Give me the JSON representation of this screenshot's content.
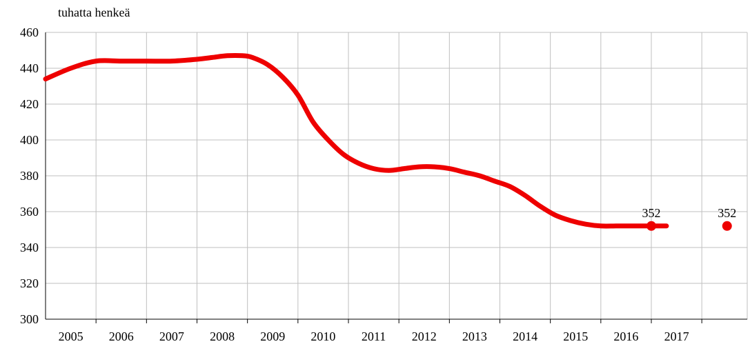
{
  "chart_data": {
    "type": "line",
    "title": "",
    "unit_label": "tuhatta henkeä",
    "xlabel": "",
    "ylabel": "",
    "ylim": [
      300,
      460
    ],
    "yticks": [
      300,
      320,
      340,
      360,
      380,
      400,
      420,
      440,
      460
    ],
    "xlim": [
      2004,
      2017.9
    ],
    "xticks": [
      "2005",
      "2006",
      "2007",
      "2008",
      "2009",
      "2010",
      "2011",
      "2012",
      "2013",
      "2014",
      "2015",
      "2016",
      "2017"
    ],
    "grid": true,
    "series": [
      {
        "type": "line",
        "color": "#ee0000",
        "x": [
          2004.0,
          2004.5,
          2005.0,
          2005.5,
          2006.0,
          2006.5,
          2007.0,
          2007.3,
          2007.6,
          2007.9,
          2008.1,
          2008.4,
          2008.7,
          2009.0,
          2009.3,
          2009.6,
          2009.9,
          2010.2,
          2010.5,
          2010.8,
          2011.1,
          2011.4,
          2011.7,
          2012.0,
          2012.3,
          2012.6,
          2012.9,
          2013.2,
          2013.5,
          2013.8,
          2014.1,
          2014.4,
          2014.7,
          2015.0,
          2015.3,
          2015.6,
          2015.9,
          2016.1,
          2016.3
        ],
        "y": [
          434,
          440,
          444,
          444,
          444,
          444,
          445,
          446,
          447,
          447,
          446,
          442,
          435,
          425,
          410,
          400,
          392,
          387,
          384,
          383,
          384,
          385,
          385,
          384,
          382,
          380,
          377,
          374,
          369,
          363,
          358,
          355,
          353,
          352,
          352,
          352,
          352,
          352,
          352
        ]
      },
      {
        "type": "points",
        "color": "#ee0000",
        "points": [
          {
            "x": 2016.0,
            "y": 352,
            "label": "352"
          },
          {
            "x": 2017.5,
            "y": 352,
            "label": "352"
          }
        ]
      }
    ]
  }
}
